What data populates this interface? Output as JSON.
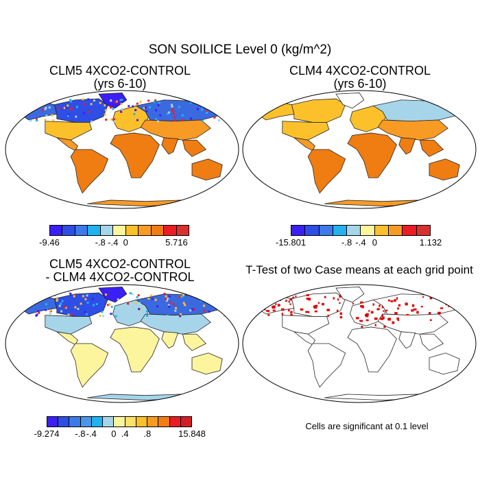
{
  "title": "SON SOILICE Level 0 (kg/m^2)",
  "chart_data": [
    {
      "type": "heatmap",
      "panel": "top-left",
      "title_line1": "CLM5 4XCO2-CONTROL",
      "title_line2": "(yrs 6-10)",
      "colorbar": {
        "colors": [
          "#3b1ff5",
          "#2e4ee6",
          "#3b7ae8",
          "#22b2ef",
          "#a6d5ea",
          "#fdf59d",
          "#fcc12a",
          "#f89b25",
          "#f07d12",
          "#ec1c24",
          "#d9312f"
        ],
        "labels": [
          "-9.46",
          "-.8",
          "-.4",
          "0",
          "5.716"
        ],
        "label_positions": [
          0,
          4,
          5,
          6,
          10
        ]
      },
      "regions": [
        {
          "name": "Alaska",
          "fill": "#3b6ae0"
        },
        {
          "name": "Canada",
          "fill": "#2e4ee6"
        },
        {
          "name": "Greenland",
          "fill": "#3b1ff5"
        },
        {
          "name": "Contiguous US",
          "fill": "#fcc12a"
        },
        {
          "name": "Central America",
          "fill": "#f89b25"
        },
        {
          "name": "South America",
          "fill": "#f07d12"
        },
        {
          "name": "Europe",
          "fill": "#fcc12a"
        },
        {
          "name": "Siberia",
          "fill": "#3b6ae0"
        },
        {
          "name": "Asia",
          "fill": "#f89b25"
        },
        {
          "name": "Africa",
          "fill": "#f07d12"
        },
        {
          "name": "India",
          "fill": "#f07d12"
        },
        {
          "name": "Southeast Asia",
          "fill": "#f07d12"
        },
        {
          "name": "Australia",
          "fill": "#f07d12"
        },
        {
          "name": "Antarctic coast",
          "fill": "#f89b25"
        }
      ]
    },
    {
      "type": "heatmap",
      "panel": "top-right",
      "title_line1": "CLM4 4XCO2-CONTROL",
      "title_line2": "(yrs 6-10)",
      "colorbar": {
        "colors": [
          "#3b1ff5",
          "#2e4ee6",
          "#3b7ae8",
          "#22b2ef",
          "#a6d5ea",
          "#fdf59d",
          "#fcc12a",
          "#f89b25",
          "#ec1c24",
          "#d9312f"
        ],
        "labels": [
          "-15.801",
          "-.8",
          "-.4",
          "0",
          "1.132"
        ],
        "label_positions": [
          0,
          4,
          5,
          6,
          10
        ]
      },
      "regions": [
        {
          "name": "Alaska",
          "fill": "#fcc12a"
        },
        {
          "name": "Canada",
          "fill": "#fcc12a"
        },
        {
          "name": "Greenland",
          "fill": "#ffffff"
        },
        {
          "name": "Contiguous US",
          "fill": "#fcc12a"
        },
        {
          "name": "Central America",
          "fill": "#f89b25"
        },
        {
          "name": "South America",
          "fill": "#f07d12"
        },
        {
          "name": "Europe",
          "fill": "#fcc12a"
        },
        {
          "name": "Siberia",
          "fill": "#a6d5ea"
        },
        {
          "name": "Asia",
          "fill": "#f89b25"
        },
        {
          "name": "Africa",
          "fill": "#f07d12"
        },
        {
          "name": "India",
          "fill": "#f07d12"
        },
        {
          "name": "Southeast Asia",
          "fill": "#f07d12"
        },
        {
          "name": "Australia",
          "fill": "#f07d12"
        },
        {
          "name": "Antarctic coast",
          "fill": "#f89b25"
        }
      ]
    },
    {
      "type": "heatmap",
      "panel": "bottom-left",
      "title_line1": "CLM5 4XCO2-CONTROL",
      "title_line2": "- CLM4 4XCO2-CONTROL",
      "colorbar": {
        "colors": [
          "#3b1ff5",
          "#2e4ee6",
          "#3b7ae8",
          "#4b96e6",
          "#22b2ef",
          "#a6d5ea",
          "#fdf59d",
          "#fde26a",
          "#fcc12a",
          "#f89b25",
          "#f07d12",
          "#ec1c24",
          "#d01f25"
        ],
        "labels": [
          "-9.274",
          "-.8",
          "-.4",
          "0",
          ".4",
          ".8",
          "15.848"
        ],
        "label_positions": [
          0,
          3,
          4,
          6,
          7,
          9,
          13
        ]
      },
      "regions": [
        {
          "name": "Alaska",
          "fill": "#3b6ae0"
        },
        {
          "name": "Canada",
          "fill": "#2e4ee6"
        },
        {
          "name": "Greenland",
          "fill": "#3b1ff5"
        },
        {
          "name": "Contiguous US",
          "fill": "#a6d5ea"
        },
        {
          "name": "Central America",
          "fill": "#fdf59d"
        },
        {
          "name": "South America",
          "fill": "#fdf59d"
        },
        {
          "name": "Europe",
          "fill": "#a6d5ea"
        },
        {
          "name": "Siberia",
          "fill": "#3b6ae0"
        },
        {
          "name": "Asia",
          "fill": "#a6d5ea"
        },
        {
          "name": "Africa",
          "fill": "#fdf59d"
        },
        {
          "name": "India",
          "fill": "#fdf59d"
        },
        {
          "name": "Southeast Asia",
          "fill": "#fdf59d"
        },
        {
          "name": "Australia",
          "fill": "#fdf59d"
        },
        {
          "name": "Antarctic coast",
          "fill": "#a6d5ea"
        }
      ]
    },
    {
      "type": "heatmap",
      "panel": "bottom-right",
      "title_line1": "T-Test of two Case means at each grid point",
      "title_line2": "",
      "note": "Cells are significant at 0.1 level",
      "significant_color": "#e00000",
      "significant_regions": [
        "Alaska",
        "Canada",
        "Siberia",
        "Europe",
        "Tibet"
      ]
    }
  ]
}
